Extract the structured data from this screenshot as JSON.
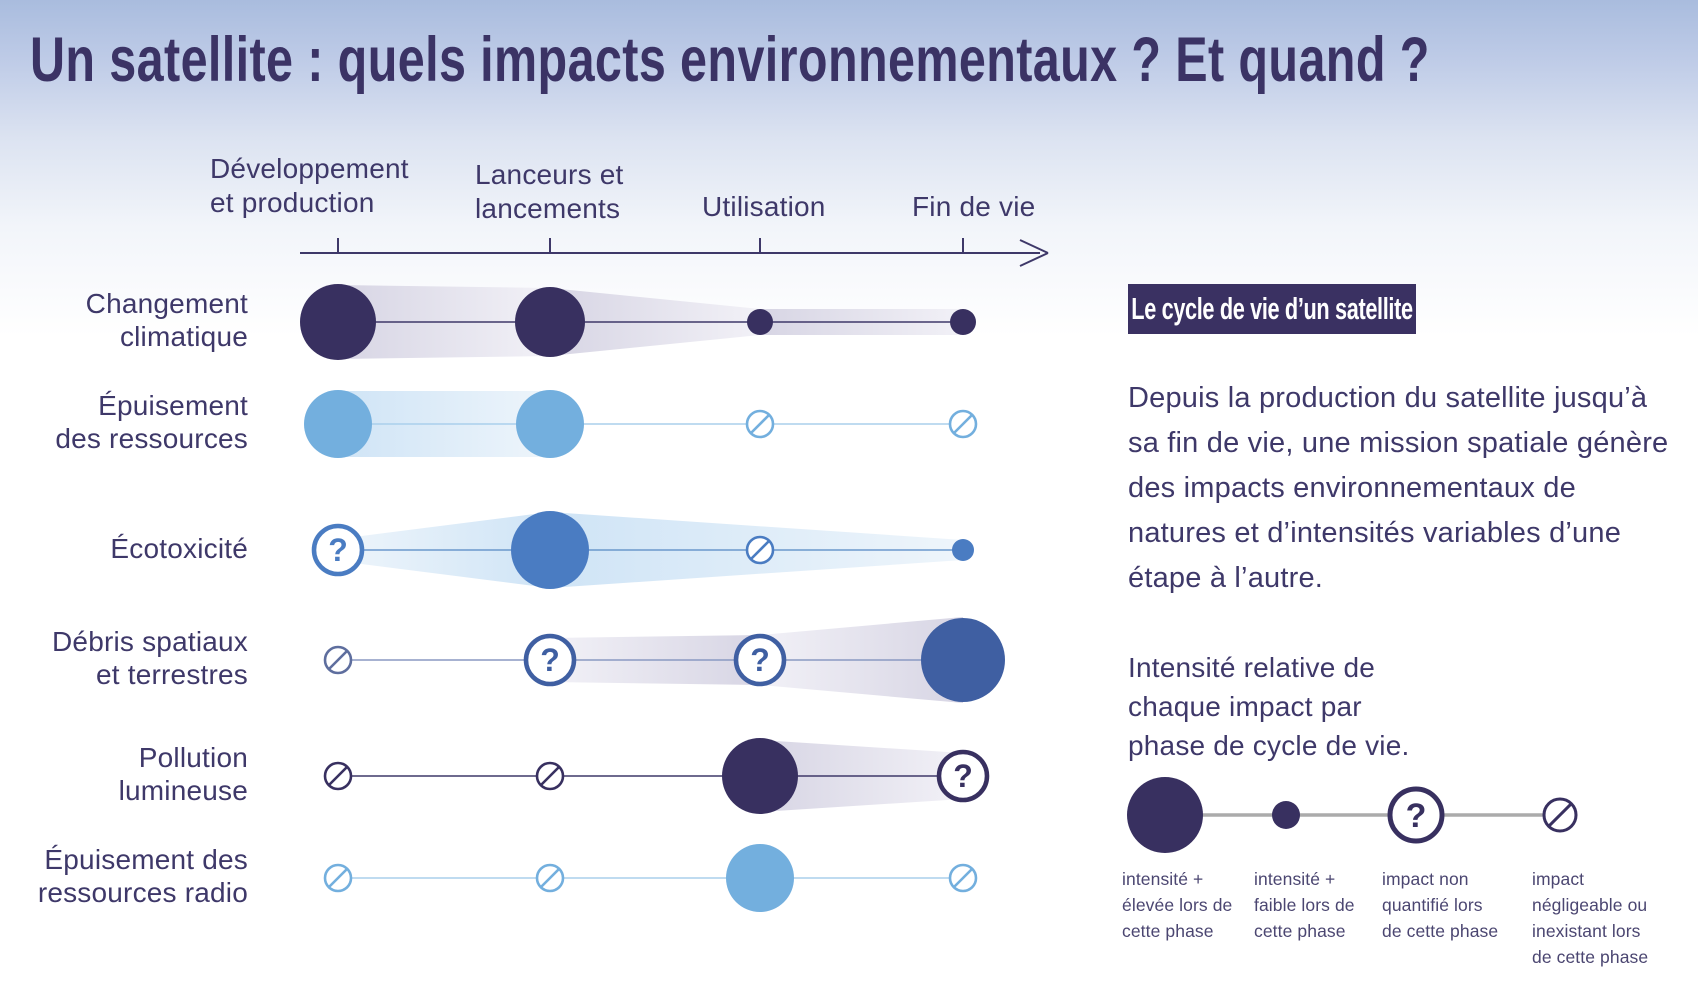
{
  "page": {
    "title": "Un satellite : quels impacts environnementaux ? Et quand ?"
  },
  "panel": {
    "header": "Le cycle de vie d’un satellite",
    "paragraph_lines": [
      "Depuis la production du satellite jusqu’à",
      "sa fin de vie, une mission spatiale génère",
      "des impacts environnementaux de",
      "natures et d’intensités variables d’une",
      "étape à l’autre."
    ]
  },
  "chart_data": {
    "type": "lifecycle-impact-matrix",
    "phases": [
      {
        "lines": [
          "Développement",
          "et production"
        ]
      },
      {
        "lines": [
          "Lanceurs et",
          "lancements"
        ]
      },
      {
        "lines": [
          "Utilisation"
        ]
      },
      {
        "lines": [
          "Fin de vie"
        ]
      }
    ],
    "intensity_scale": [
      "high",
      "low",
      "unquantified",
      "negligible"
    ],
    "rows": [
      {
        "label_lines": [
          "Changement",
          "climatique"
        ],
        "color": "navy",
        "line": "#3E3869",
        "ribbon_palette": "grey",
        "cells": [
          {
            "v": "high",
            "r": 38
          },
          {
            "v": "high",
            "r": 35
          },
          {
            "v": "low",
            "r": 13
          },
          {
            "v": "low",
            "r": 13
          }
        ],
        "ribbons": [
          {
            "a": 0,
            "b": 1,
            "h1": 74,
            "h2": 68
          },
          {
            "a": 1,
            "b": 2,
            "h1": 68,
            "h2": 26
          },
          {
            "a": 2,
            "b": 3,
            "h1": 26,
            "h2": 26
          }
        ]
      },
      {
        "label_lines": [
          "Épuisement",
          "des ressources"
        ],
        "color": "light_blue",
        "line": "#AACFEC",
        "ribbon_palette": "blue",
        "cells": [
          {
            "v": "high",
            "r": 34
          },
          {
            "v": "high",
            "r": 34
          },
          {
            "v": "negligible",
            "r": 13
          },
          {
            "v": "negligible",
            "r": 13
          }
        ],
        "ribbons": [
          {
            "a": 0,
            "b": 1,
            "h1": 66,
            "h2": 66
          }
        ]
      },
      {
        "label_lines": [
          "Écotoxicité"
        ],
        "color": "med_blue",
        "line": "#6B98CC",
        "ribbon_palette": "blue",
        "cells": [
          {
            "v": "unquantified",
            "r": 24
          },
          {
            "v": "high",
            "r": 39
          },
          {
            "v": "negligible",
            "r": 13
          },
          {
            "v": "low",
            "r": 11
          }
        ],
        "ribbons": [
          {
            "a": 0,
            "b": 1,
            "h1": 22,
            "h2": 76
          },
          {
            "a": 1,
            "b": 3,
            "h1": 76,
            "h2": 20
          }
        ]
      },
      {
        "label_lines": [
          "Débris spatiaux",
          "et terrestres"
        ],
        "color": "royal_blue",
        "line": "#8A99C2",
        "ribbon_palette": "grey",
        "cells": [
          {
            "v": "negligible",
            "r": 13,
            "c": "#5E6E9E"
          },
          {
            "v": "unquantified",
            "r": 24
          },
          {
            "v": "unquantified",
            "r": 24
          },
          {
            "v": "high",
            "r": 42
          }
        ],
        "ribbons": [
          {
            "a": 1,
            "b": 2,
            "h1": 44,
            "h2": 50
          },
          {
            "a": 2,
            "b": 3,
            "h1": 50,
            "h2": 86
          }
        ]
      },
      {
        "label_lines": [
          "Pollution",
          "lumineuse"
        ],
        "color": "navy",
        "line": "#3E3869",
        "ribbon_palette": "grey",
        "cells": [
          {
            "v": "negligible",
            "r": 13
          },
          {
            "v": "negligible",
            "r": 13
          },
          {
            "v": "high",
            "r": 38
          },
          {
            "v": "unquantified",
            "r": 24
          }
        ],
        "ribbons": [
          {
            "a": 2,
            "b": 3,
            "h1": 72,
            "h2": 46
          }
        ]
      },
      {
        "label_lines": [
          "Épuisement des",
          "ressources radio"
        ],
        "color": "light_blue",
        "line": "#AACFEC",
        "ribbon_palette": "blue",
        "cells": [
          {
            "v": "negligible",
            "r": 13
          },
          {
            "v": "negligible",
            "r": 13
          },
          {
            "v": "high",
            "r": 34
          },
          {
            "v": "negligible",
            "r": 13
          }
        ],
        "ribbons": []
      }
    ],
    "legend": {
      "title_lines": [
        "Intensité relative de",
        "chaque impact par",
        "phase de cycle de vie."
      ],
      "items": [
        {
          "symbol": "high",
          "caption_lines": [
            "intensité +",
            "élevée lors de",
            "cette phase"
          ]
        },
        {
          "symbol": "low",
          "caption_lines": [
            "intensité +",
            "faible lors de",
            "cette phase"
          ]
        },
        {
          "symbol": "unquantified",
          "caption_lines": [
            "impact non",
            "quantifié lors",
            "de cette phase"
          ]
        },
        {
          "symbol": "negligible",
          "caption_lines": [
            "impact",
            "négligeable ou",
            "inexistant lors",
            "de cette phase"
          ]
        }
      ]
    }
  },
  "colors": {
    "navy": "#383060",
    "light_blue": "#73AFDE",
    "med_blue": "#4A7CC2",
    "royal_blue": "#3F5FA2",
    "text": "#3E3869",
    "caption_text": "#4B4671",
    "axis": "#3E3869",
    "header_box_bg": "#3A3162",
    "header_box_text": "#FFFFFF",
    "title": "#3B3365",
    "legend_line": "#ABABAB",
    "ribbon_grey_dark": "#D7D5E4",
    "ribbon_grey_light": "#F2F1F7",
    "ribbon_blue_dark": "#CFE4F6",
    "ribbon_blue_light": "#EEF5FB",
    "bg_top": "#A9BCDE",
    "bg_bottom": "#FFFFFF"
  }
}
